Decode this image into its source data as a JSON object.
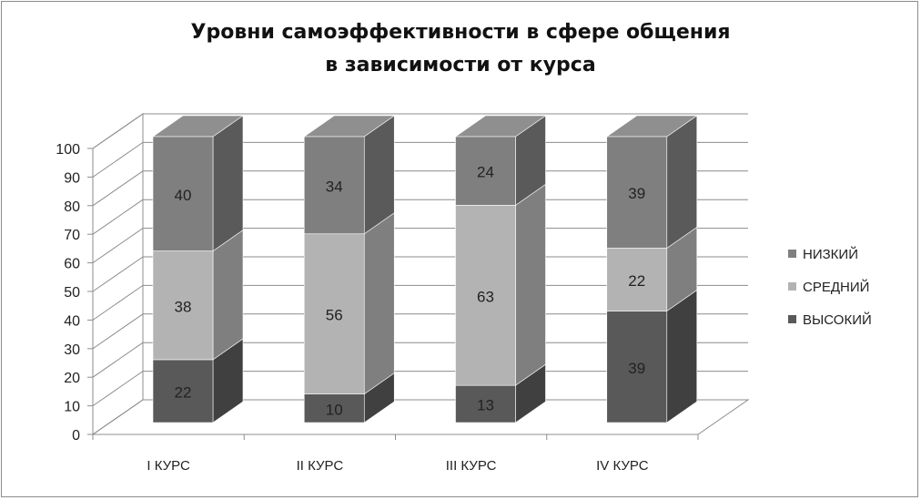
{
  "chart_data": {
    "type": "bar",
    "stacked": true,
    "three_d": true,
    "title_lines": [
      "Уровни самоэффективности в сфере общения",
      "в зависимости от курса"
    ],
    "categories": [
      "I КУРС",
      "II КУРС",
      "III КУРС",
      "IV КУРС"
    ],
    "series": [
      {
        "name": "ВЫСОКИЙ",
        "values": [
          22,
          10,
          13,
          39
        ],
        "color": "#595959",
        "side_color": "#404040",
        "top_color": "#6e6e6e"
      },
      {
        "name": "СРЕДНИЙ",
        "values": [
          38,
          56,
          63,
          22
        ],
        "color": "#b3b3b3",
        "side_color": "#7f7f7f",
        "top_color": "#c4c4c4"
      },
      {
        "name": "НИЗКИЙ",
        "values": [
          40,
          34,
          24,
          39
        ],
        "color": "#7f7f7f",
        "side_color": "#5a5a5a",
        "top_color": "#8f8f8f"
      }
    ],
    "ylim": [
      0,
      100
    ],
    "yticks": [
      0,
      10,
      20,
      30,
      40,
      50,
      60,
      70,
      80,
      90,
      100
    ],
    "grid": true,
    "legend_position": "right",
    "legend_order": [
      "НИЗКИЙ",
      "СРЕДНИЙ",
      "ВЫСОКИЙ"
    ]
  }
}
